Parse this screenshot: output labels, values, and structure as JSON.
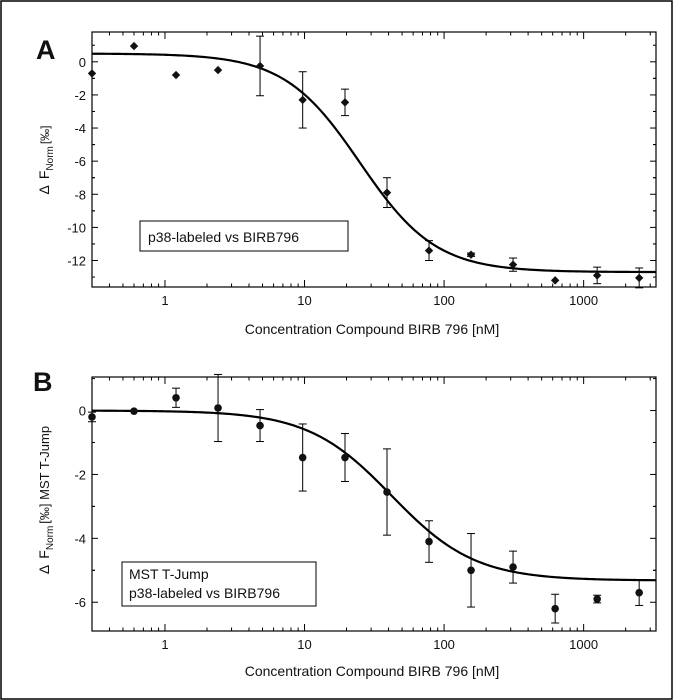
{
  "chart_data": [
    {
      "type": "scatter",
      "panel_label": "A",
      "xlabel": "Concentration Compound BIRB 796 [nM]",
      "ylabel_delta": "Δ",
      "ylabel_main": "F",
      "ylabel_sub": "Norm",
      "ylabel_tail": "[‰]",
      "legend": [
        "p38-labeled vs BIRB796"
      ],
      "xscale": "log",
      "xlim": [
        0.3,
        3300
      ],
      "ylim": [
        -13.6,
        1.8
      ],
      "xticks": [
        1,
        10,
        100,
        1000
      ],
      "xtick_labels": [
        "1",
        "10",
        "100",
        "1000"
      ],
      "yticks": [
        0,
        -2,
        -4,
        -6,
        -8,
        -10,
        -12
      ],
      "ytick_labels": [
        "0",
        "-2",
        "-4",
        "-6",
        "-8",
        "-10",
        "-12"
      ],
      "marker": "diamond",
      "points": [
        {
          "x": 0.3,
          "y": -0.7,
          "err": 0
        },
        {
          "x": 0.6,
          "y": 0.95,
          "err": 0
        },
        {
          "x": 1.2,
          "y": -0.8,
          "err": 0
        },
        {
          "x": 2.4,
          "y": -0.5,
          "err": 0
        },
        {
          "x": 4.8,
          "y": -0.25,
          "err": 1.8
        },
        {
          "x": 9.7,
          "y": -2.3,
          "err": 1.7
        },
        {
          "x": 19.5,
          "y": -2.45,
          "err": 0.8
        },
        {
          "x": 39,
          "y": -7.9,
          "err": 0.9
        },
        {
          "x": 78,
          "y": -11.4,
          "err": 0.6
        },
        {
          "x": 156,
          "y": -11.65,
          "err": 0.1
        },
        {
          "x": 312,
          "y": -12.25,
          "err": 0.4
        },
        {
          "x": 625,
          "y": -13.2,
          "err": 0
        },
        {
          "x": 1250,
          "y": -12.9,
          "err": 0.5
        },
        {
          "x": 2500,
          "y": -13.05,
          "err": 0.6
        }
      ],
      "fit": {
        "top": 0.5,
        "bottom": -12.7,
        "ec50": 25,
        "hill": 1.6
      }
    },
    {
      "type": "scatter",
      "panel_label": "B",
      "xlabel": "Concentration Compound BIRB 796 [nM]",
      "ylabel_delta": "Δ",
      "ylabel_main": "F",
      "ylabel_sub": "Norm",
      "ylabel_tail": "[‰] MST T-Jump",
      "legend": [
        "MST T-Jump",
        "p38-labeled vs BIRB796"
      ],
      "xscale": "log",
      "xlim": [
        0.3,
        3300
      ],
      "ylim": [
        -6.9,
        1.05
      ],
      "xticks": [
        1,
        10,
        100,
        1000
      ],
      "xtick_labels": [
        "1",
        "10",
        "100",
        "1000"
      ],
      "yticks": [
        0,
        -2,
        -4,
        -6
      ],
      "ytick_labels": [
        "0",
        "-2",
        "-4",
        "-6"
      ],
      "marker": "circle",
      "points": [
        {
          "x": 0.3,
          "y": -0.2,
          "err": 0.15
        },
        {
          "x": 0.6,
          "y": -0.02,
          "err": 0
        },
        {
          "x": 1.2,
          "y": 0.4,
          "err": 0.3
        },
        {
          "x": 2.4,
          "y": 0.08,
          "err": 1.05
        },
        {
          "x": 4.8,
          "y": -0.47,
          "err": 0.5
        },
        {
          "x": 9.7,
          "y": -1.47,
          "err": 1.05
        },
        {
          "x": 19.5,
          "y": -1.47,
          "err": 0.75
        },
        {
          "x": 39,
          "y": -2.55,
          "err": 1.35
        },
        {
          "x": 78,
          "y": -4.1,
          "err": 0.65
        },
        {
          "x": 156,
          "y": -5.0,
          "err": 1.15
        },
        {
          "x": 312,
          "y": -4.9,
          "err": 0.5
        },
        {
          "x": 625,
          "y": -6.2,
          "err": 0.45
        },
        {
          "x": 1250,
          "y": -5.9,
          "err": 0.12
        },
        {
          "x": 2500,
          "y": -5.7,
          "err": 0.4
        }
      ],
      "fit": {
        "top": 0.0,
        "bottom": -5.32,
        "ec50": 42,
        "hill": 1.45
      }
    }
  ]
}
